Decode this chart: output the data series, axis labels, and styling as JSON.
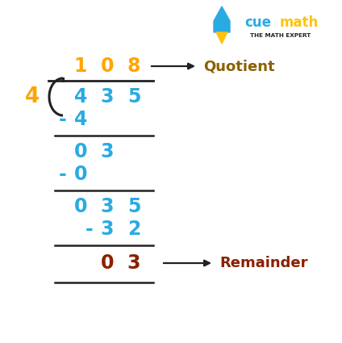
{
  "bg_color": "#ffffff",
  "orange_color": "#FFA500",
  "blue_color": "#29ABE2",
  "brown_color": "#8B2000",
  "black_color": "#222222",
  "cue_cyan": "#29ABE2",
  "cue_yellow": "#FFC20E",
  "cue_brown": "#B8860B",
  "figsize": [
    4.24,
    4.25
  ],
  "dpi": 100,
  "quotient_label": "Quotient",
  "remainder_label": "Remainder",
  "divisor": "4"
}
